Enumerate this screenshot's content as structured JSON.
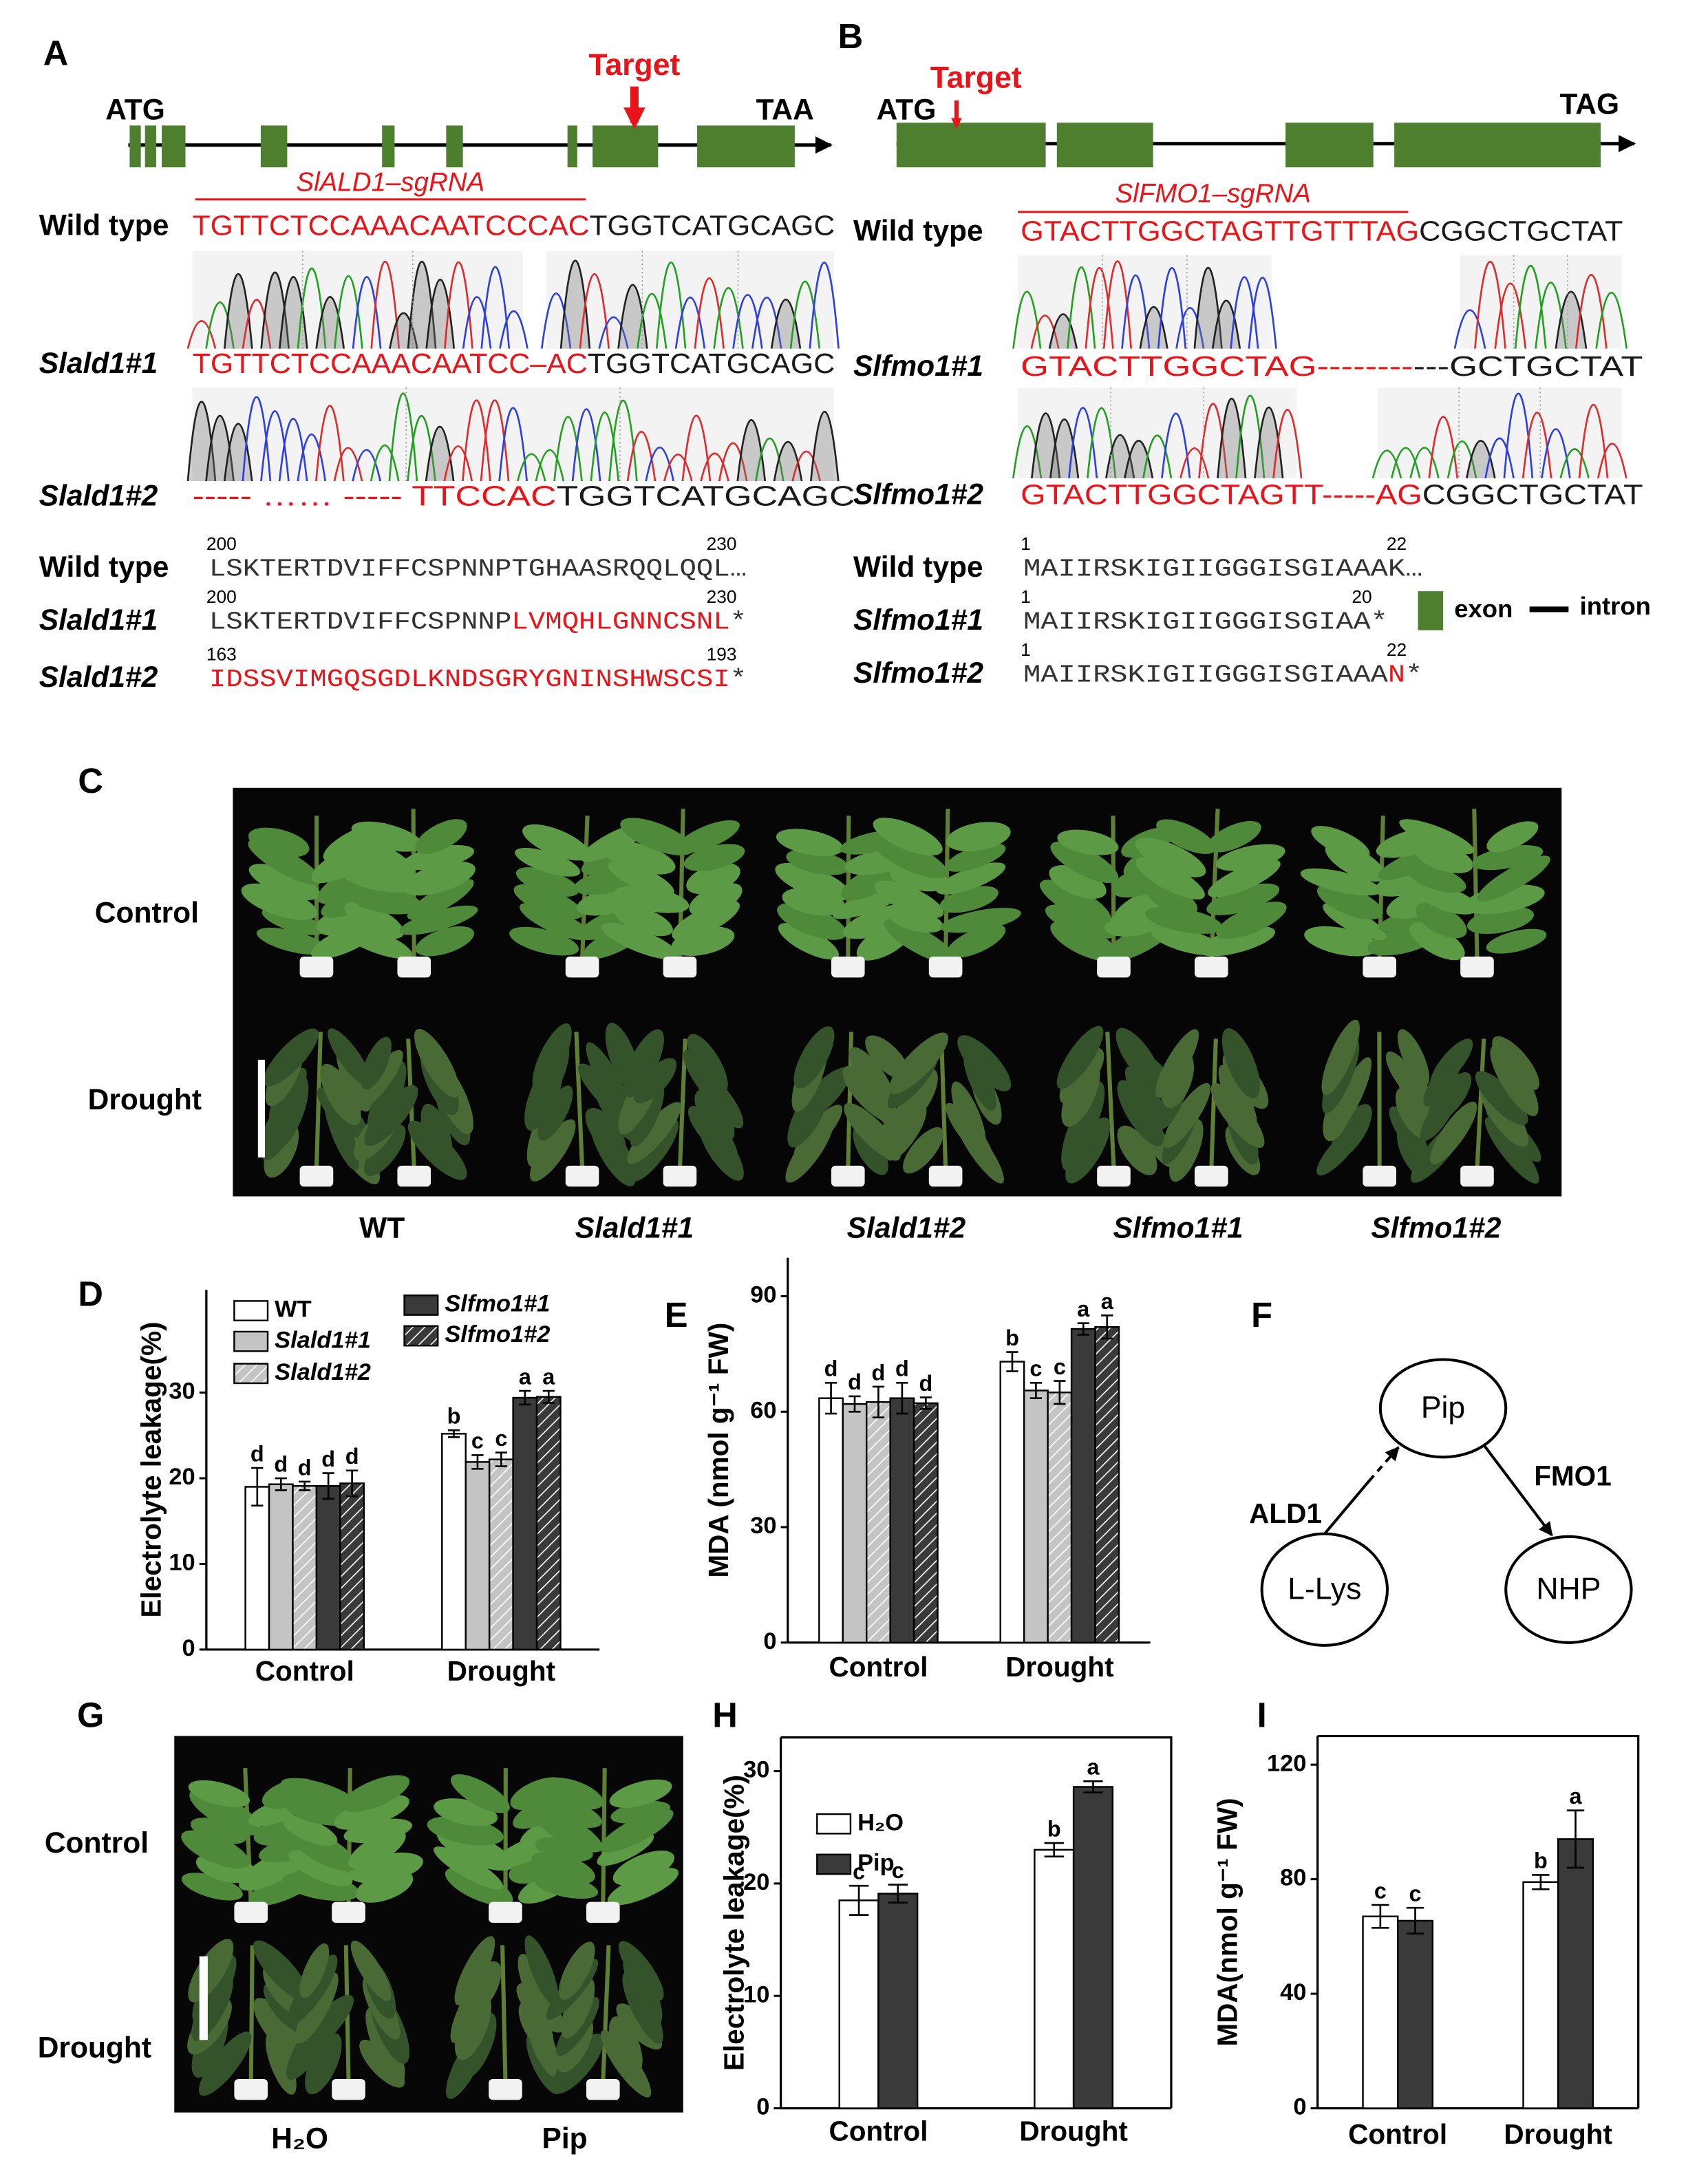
{
  "panel_labels": [
    "A",
    "B",
    "C",
    "D",
    "E",
    "F",
    "G",
    "H",
    "I"
  ],
  "panel_a": {
    "start_codon": "ATG",
    "stop_codon": "TAA",
    "target": "Target",
    "sgrna": "SlALD1–sgRNA",
    "dna": [
      {
        "name": "Wild type",
        "segments": [
          {
            "text": "TGTTCTCCAAACAATCCCAC",
            "color": "#e8141a"
          },
          {
            "text": "TGGTCATGCAGC",
            "color": "#1a1a1a"
          }
        ]
      },
      {
        "name": "Slald1#1",
        "italic": true,
        "segments": [
          {
            "text": "TGTTCTCCAAACAATCC–AC",
            "color": "#e8141a"
          },
          {
            "text": "TGGTCATGCAGC",
            "color": "#1a1a1a"
          }
        ]
      },
      {
        "name": "Slald1#2",
        "italic": true,
        "segments": [
          {
            "text": "----- …… ----- TTCCAC",
            "color": "#e8141a"
          },
          {
            "text": "TGGTCATGCAGC",
            "color": "#1a1a1a"
          }
        ]
      }
    ],
    "protein": [
      {
        "name": "Wild type",
        "start": "200",
        "end": "230",
        "segments": [
          {
            "text": "LSKTERTDVIFFCSPNNPTGHAASRQQLQQL…",
            "color": "#333333"
          }
        ]
      },
      {
        "name": "Slald1#1",
        "italic": true,
        "start": "200",
        "end": "230",
        "segments": [
          {
            "text": "LSKTERTDVIFFCSPNNP",
            "color": "#333333"
          },
          {
            "text": "LVMQHLGNNCSNL",
            "color": "#e8141a"
          },
          {
            "text": "*",
            "color": "#333333"
          }
        ]
      },
      {
        "name": "Slald1#2",
        "italic": true,
        "start": "163",
        "end": "193",
        "segments": [
          {
            "text": "IDSSVIMGQSGDLKNDSGRYGNINSHWSCSI",
            "color": "#e8141a"
          },
          {
            "text": "*",
            "color": "#333333"
          }
        ]
      }
    ]
  },
  "panel_b": {
    "start_codon": "ATG",
    "stop_codon": "TAG",
    "target": "Target",
    "sgrna": "SlFMO1–sgRNA",
    "dna": [
      {
        "name": "Wild type",
        "segments": [
          {
            "text": "GTACTTGGCTAGTTGTTTAG",
            "color": "#e8141a"
          },
          {
            "text": "CGGCTGCTAT",
            "color": "#1a1a1a"
          }
        ]
      },
      {
        "name": "Slfmo1#1",
        "italic": true,
        "segments": [
          {
            "text": "GTACTTGGCTAG--------",
            "color": "#e8141a"
          },
          {
            "text": "---GCTGCTAT",
            "color": "#1a1a1a"
          }
        ]
      },
      {
        "name": "Slfmo1#2",
        "italic": true,
        "segments": [
          {
            "text": "GTACTTGGCTAGTT-----AG",
            "color": "#e8141a"
          },
          {
            "text": "CGGCTGCTAT",
            "color": "#1a1a1a"
          }
        ]
      }
    ],
    "protein": [
      {
        "name": "Wild type",
        "start": "1",
        "end": "22",
        "segments": [
          {
            "text": "MAIIRSKIGIIGGGISGIAAAK…",
            "color": "#333333"
          }
        ]
      },
      {
        "name": "Slfmo1#1",
        "italic": true,
        "start": "1",
        "end": "20",
        "segments": [
          {
            "text": "MAIIRSKIGIIGGGISGIAA*",
            "color": "#333333"
          }
        ]
      },
      {
        "name": "Slfmo1#2",
        "italic": true,
        "start": "1",
        "end": "22",
        "segments": [
          {
            "text": "MAIIRSKIGIIGGGISGIAAA",
            "color": "#333333"
          },
          {
            "text": "N",
            "color": "#e8141a"
          },
          {
            "text": "*",
            "color": "#333333"
          }
        ]
      }
    ],
    "legend": [
      "exon",
      "intron"
    ]
  },
  "panel_c": {
    "rows": [
      "Control",
      "Drought"
    ],
    "columns": [
      {
        "label": "WT"
      },
      {
        "label": "Slald1#1",
        "italic": true
      },
      {
        "label": "Slald1#2",
        "italic": true
      },
      {
        "label": "Slfmo1#1",
        "italic": true
      },
      {
        "label": "Slfmo1#2",
        "italic": true
      }
    ]
  },
  "panel_f": {
    "nodes": [
      {
        "label": "Pip"
      },
      {
        "label": "L-Lys"
      },
      {
        "label": "NHP"
      }
    ],
    "edges": [
      {
        "label": "ALD1"
      },
      {
        "label": "FMO1"
      }
    ]
  },
  "panel_g": {
    "rows": [
      "Control",
      "Drought"
    ],
    "columns": [
      "H₂O",
      "Pip"
    ]
  },
  "chart_data": [
    {
      "type": "bar",
      "ylabel": "Electrolyte leakage(%)",
      "categories": [
        "Control",
        "Drought"
      ],
      "ylim": [
        0,
        42
      ],
      "yticks": [
        0,
        10,
        20,
        30
      ],
      "legend": "upper left",
      "series": [
        {
          "name": "WT",
          "color": "#ffffff",
          "values": [
            19.0,
            25.2
          ],
          "errors": [
            2.2,
            0.4
          ],
          "letters": [
            "d",
            "b"
          ]
        },
        {
          "name": "Slald1#1",
          "color": "#c4c4c4",
          "values": [
            19.3,
            21.9
          ],
          "errors": [
            0.7,
            0.8
          ],
          "letters": [
            "d",
            "c"
          ]
        },
        {
          "name": "Slald1#2",
          "color": "#c4c4c4",
          "hatch": true,
          "values": [
            19.1,
            22.2
          ],
          "errors": [
            0.5,
            0.8
          ],
          "letters": [
            "d",
            "c"
          ]
        },
        {
          "name": "Slfmo1#1",
          "color": "#3a3a3a",
          "values": [
            19.1,
            29.4
          ],
          "errors": [
            1.5,
            0.8
          ],
          "letters": [
            "d",
            "a"
          ]
        },
        {
          "name": "Slfmo1#2",
          "color": "#3a3a3a",
          "hatch": true,
          "values": [
            19.4,
            29.5
          ],
          "errors": [
            1.5,
            0.7
          ],
          "letters": [
            "d",
            "a"
          ]
        }
      ]
    },
    {
      "type": "bar",
      "ylabel": "MDA (nmol g⁻¹ FW)",
      "categories": [
        "Control",
        "Drought"
      ],
      "ylim": [
        0,
        100
      ],
      "yticks": [
        0,
        30,
        60,
        90
      ],
      "series": [
        {
          "color": "#ffffff",
          "values": [
            63.5,
            73.0
          ],
          "errors": [
            4,
            2.5
          ],
          "letters": [
            "d",
            "b"
          ]
        },
        {
          "color": "#c4c4c4",
          "values": [
            62.0,
            65.5
          ],
          "errors": [
            2,
            2
          ],
          "letters": [
            "d",
            "c"
          ]
        },
        {
          "color": "#c4c4c4",
          "hatch": true,
          "values": [
            62.5,
            65.0
          ],
          "errors": [
            4,
            3
          ],
          "letters": [
            "d",
            "c"
          ]
        },
        {
          "color": "#3a3a3a",
          "values": [
            63.5,
            81.5
          ],
          "errors": [
            4,
            1.5
          ],
          "letters": [
            "d",
            "a"
          ]
        },
        {
          "color": "#3a3a3a",
          "hatch": true,
          "values": [
            62.2,
            82.0
          ],
          "errors": [
            1.5,
            3
          ],
          "letters": [
            "d",
            "a"
          ]
        }
      ]
    },
    {
      "type": "bar",
      "ylabel": "Electrolyte leakage(%)",
      "categories": [
        "Control",
        "Drought"
      ],
      "ylim": [
        0,
        33
      ],
      "yticks": [
        0,
        10,
        20,
        30
      ],
      "legend": "upper left",
      "frame": true,
      "series": [
        {
          "name": "H₂O",
          "color": "#ffffff",
          "values": [
            18.5,
            23.0
          ],
          "errors": [
            1.3,
            0.6
          ],
          "letters": [
            "c",
            "b"
          ]
        },
        {
          "name": "Pip",
          "color": "#3a3a3a",
          "values": [
            19.1,
            28.6
          ],
          "errors": [
            0.8,
            0.5
          ],
          "letters": [
            "c",
            "a"
          ]
        }
      ]
    },
    {
      "type": "bar",
      "ylabel": "MDA(nmol g⁻¹ FW)",
      "categories": [
        "Control",
        "Drought"
      ],
      "ylim": [
        0,
        130
      ],
      "yticks": [
        0,
        40,
        80,
        120
      ],
      "frame": true,
      "series": [
        {
          "color": "#ffffff",
          "values": [
            67,
            79
          ],
          "errors": [
            4,
            2.5
          ],
          "letters": [
            "c",
            "b"
          ]
        },
        {
          "color": "#3a3a3a",
          "values": [
            65.5,
            94
          ],
          "errors": [
            4.5,
            10
          ],
          "letters": [
            "c",
            "a"
          ]
        }
      ]
    }
  ]
}
